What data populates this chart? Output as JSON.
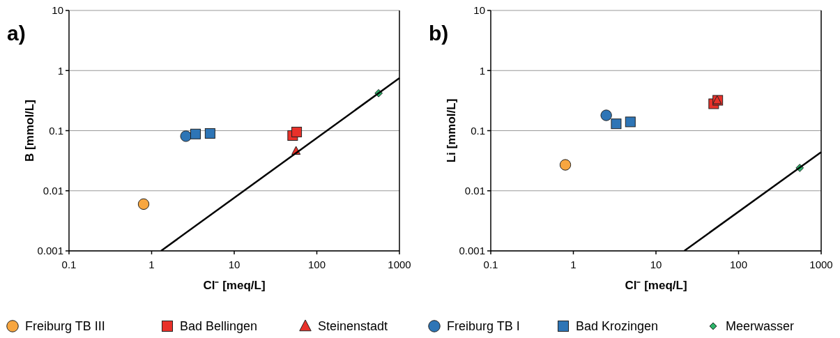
{
  "chart_data": [
    {
      "type": "scatter",
      "title": "a)",
      "xlabel": "Cl⁻ [meq/L]",
      "ylabel": "B [mmol/L]",
      "log": "xy",
      "xlim": [
        0.1,
        1000
      ],
      "ylim": [
        0.001,
        10
      ],
      "xticks": [
        0.1,
        1,
        10,
        100,
        1000
      ],
      "yticks": [
        0.001,
        0.01,
        0.1,
        1,
        10
      ],
      "grid": "y",
      "legend": "bottom",
      "series": [
        {
          "name": "Freiburg TB III",
          "color": "#f7a640",
          "marker": "circle",
          "x": [
            0.8
          ],
          "values": [
            0.006
          ]
        },
        {
          "name": "Bad Bellingen",
          "color": "#e8312a",
          "marker": "square",
          "x": [
            51,
            57
          ],
          "values": [
            0.083,
            0.095
          ]
        },
        {
          "name": "Steinenstadt",
          "color": "#e8312a",
          "marker": "triangle",
          "x": [
            56
          ],
          "values": [
            0.046
          ]
        },
        {
          "name": "Freiburg TB I",
          "color": "#2e75b6",
          "marker": "circle",
          "x": [
            2.6
          ],
          "values": [
            0.081
          ]
        },
        {
          "name": "Bad Krozingen",
          "color": "#2e75b6",
          "marker": "square",
          "x": [
            3.4,
            5.1
          ],
          "values": [
            0.088,
            0.09
          ]
        },
        {
          "name": "Meerwasser",
          "color": "#2db46a",
          "marker": "diamond",
          "x": [
            560
          ],
          "values": [
            0.42
          ]
        },
        {
          "type": "line",
          "color": "#000000",
          "x": [
            1.3,
            1000
          ],
          "values": [
            0.001,
            0.75
          ]
        }
      ]
    },
    {
      "type": "scatter",
      "title": "b)",
      "xlabel": "Cl⁻ [meq/L]",
      "ylabel": "Li [mmol/L]",
      "log": "xy",
      "xlim": [
        0.1,
        1000
      ],
      "ylim": [
        0.001,
        10
      ],
      "xticks": [
        0.1,
        1,
        10,
        100,
        1000
      ],
      "yticks": [
        0.001,
        0.01,
        0.1,
        1,
        10
      ],
      "grid": "y",
      "series": [
        {
          "color": "#f7a640",
          "marker": "circle",
          "x": [
            0.8
          ],
          "values": [
            0.027
          ]
        },
        {
          "color": "#e8312a",
          "marker": "square",
          "x": [
            50,
            56
          ],
          "values": [
            0.28,
            0.32
          ]
        },
        {
          "color": "#e8312a",
          "marker": "triangle",
          "x": [
            55
          ],
          "values": [
            0.32
          ]
        },
        {
          "color": "#2e75b6",
          "marker": "circle",
          "x": [
            2.5
          ],
          "values": [
            0.18
          ]
        },
        {
          "color": "#2e75b6",
          "marker": "square",
          "x": [
            3.3,
            4.9
          ],
          "values": [
            0.13,
            0.14
          ]
        },
        {
          "color": "#2db46a",
          "marker": "diamond",
          "x": [
            550
          ],
          "values": [
            0.024
          ]
        },
        {
          "type": "line",
          "color": "#000000",
          "x": [
            22,
            1000
          ],
          "values": [
            0.001,
            0.044
          ]
        }
      ]
    }
  ]
}
